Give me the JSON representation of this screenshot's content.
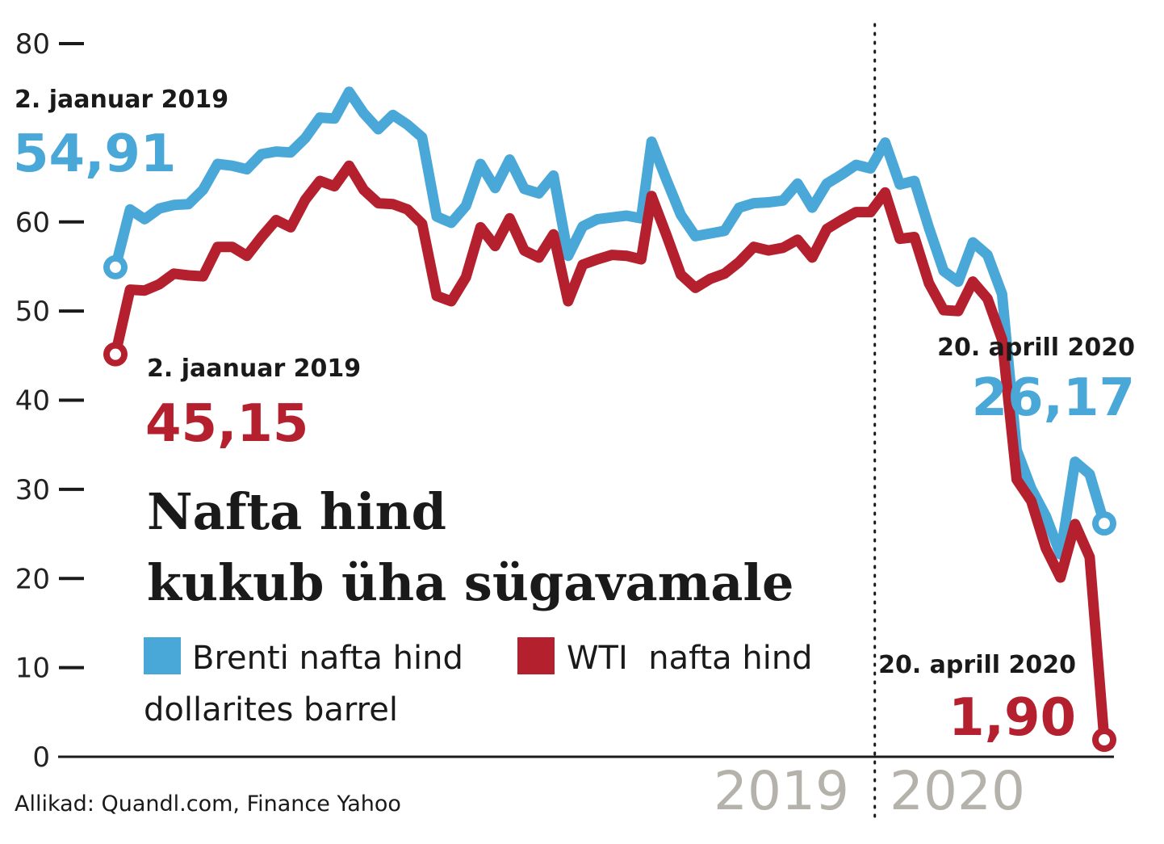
{
  "chart_data": {
    "type": "line",
    "title": [
      "Nafta hind",
      "kukub üha sügavamale"
    ],
    "unit_label": "dollarites barrel",
    "source": "Allikad: Quandl.com, Finance Yahoo",
    "ylim": [
      0,
      80
    ],
    "yticks": [
      "0",
      "10",
      "20",
      "30",
      "40",
      "50",
      "60",
      "80"
    ],
    "ytick_values": [
      0,
      10,
      20,
      30,
      40,
      50,
      60,
      80
    ],
    "x_range": [
      "2019-01-02",
      "2020-04-20"
    ],
    "year_labels": [
      "2019",
      "2020"
    ],
    "year_divider": "2020-01-01",
    "series": [
      {
        "name": "Brenti nafta hind",
        "color": "#4aa8d8",
        "values": [
          [
            "2019-01-02",
            54.91
          ],
          [
            "2019-01-09",
            61.4
          ],
          [
            "2019-01-16",
            60.3
          ],
          [
            "2019-01-23",
            61.5
          ],
          [
            "2019-01-30",
            61.9
          ],
          [
            "2019-02-06",
            62.0
          ],
          [
            "2019-02-13",
            63.6
          ],
          [
            "2019-02-20",
            66.5
          ],
          [
            "2019-02-27",
            66.3
          ],
          [
            "2019-03-06",
            65.9
          ],
          [
            "2019-03-13",
            67.6
          ],
          [
            "2019-03-20",
            67.9
          ],
          [
            "2019-03-27",
            67.8
          ],
          [
            "2019-04-03",
            69.4
          ],
          [
            "2019-04-10",
            71.7
          ],
          [
            "2019-04-17",
            71.6
          ],
          [
            "2019-04-24",
            74.6
          ],
          [
            "2019-05-01",
            72.2
          ],
          [
            "2019-05-08",
            70.4
          ],
          [
            "2019-05-15",
            72.0
          ],
          [
            "2019-05-22",
            70.9
          ],
          [
            "2019-05-29",
            69.5
          ],
          [
            "2019-06-05",
            60.6
          ],
          [
            "2019-06-12",
            59.9
          ],
          [
            "2019-06-19",
            61.8
          ],
          [
            "2019-06-26",
            66.5
          ],
          [
            "2019-07-03",
            63.8
          ],
          [
            "2019-07-10",
            67.0
          ],
          [
            "2019-07-17",
            63.7
          ],
          [
            "2019-07-24",
            63.2
          ],
          [
            "2019-07-31",
            65.2
          ],
          [
            "2019-08-07",
            56.2
          ],
          [
            "2019-08-14",
            59.5
          ],
          [
            "2019-08-21",
            60.3
          ],
          [
            "2019-08-28",
            60.5
          ],
          [
            "2019-09-04",
            60.7
          ],
          [
            "2019-09-11",
            60.4
          ],
          [
            "2019-09-16",
            69.0
          ],
          [
            "2019-09-23",
            64.8
          ],
          [
            "2019-09-30",
            60.8
          ],
          [
            "2019-10-07",
            58.4
          ],
          [
            "2019-10-14",
            58.7
          ],
          [
            "2019-10-21",
            59.0
          ],
          [
            "2019-10-28",
            61.6
          ],
          [
            "2019-11-04",
            62.1
          ],
          [
            "2019-11-11",
            62.2
          ],
          [
            "2019-11-18",
            62.4
          ],
          [
            "2019-11-25",
            64.3
          ],
          [
            "2019-12-02",
            61.6
          ],
          [
            "2019-12-09",
            64.3
          ],
          [
            "2019-12-16",
            65.3
          ],
          [
            "2019-12-23",
            66.4
          ],
          [
            "2019-12-30",
            66.0
          ],
          [
            "2020-01-06",
            68.9
          ],
          [
            "2020-01-13",
            64.2
          ],
          [
            "2020-01-20",
            64.6
          ],
          [
            "2020-01-27",
            59.3
          ],
          [
            "2020-02-03",
            54.5
          ],
          [
            "2020-02-10",
            53.3
          ],
          [
            "2020-02-17",
            57.7
          ],
          [
            "2020-02-24",
            56.3
          ],
          [
            "2020-03-02",
            51.9
          ],
          [
            "2020-03-09",
            34.4
          ],
          [
            "2020-03-16",
            30.1
          ],
          [
            "2020-03-23",
            27.0
          ],
          [
            "2020-03-30",
            22.7
          ],
          [
            "2020-04-06",
            33.1
          ],
          [
            "2020-04-13",
            31.7
          ],
          [
            "2020-04-20",
            26.17
          ]
        ]
      },
      {
        "name": "WTI  nafta hind",
        "color": "#b5202e",
        "values": [
          [
            "2019-01-02",
            45.15
          ],
          [
            "2019-01-09",
            52.4
          ],
          [
            "2019-01-16",
            52.3
          ],
          [
            "2019-01-23",
            53.0
          ],
          [
            "2019-01-30",
            54.2
          ],
          [
            "2019-02-06",
            54.0
          ],
          [
            "2019-02-13",
            53.9
          ],
          [
            "2019-02-20",
            57.2
          ],
          [
            "2019-02-27",
            57.2
          ],
          [
            "2019-03-06",
            56.2
          ],
          [
            "2019-03-13",
            58.3
          ],
          [
            "2019-03-20",
            60.2
          ],
          [
            "2019-03-27",
            59.4
          ],
          [
            "2019-04-03",
            62.5
          ],
          [
            "2019-04-10",
            64.6
          ],
          [
            "2019-04-17",
            64.0
          ],
          [
            "2019-04-24",
            66.3
          ],
          [
            "2019-05-01",
            63.6
          ],
          [
            "2019-05-08",
            62.1
          ],
          [
            "2019-05-15",
            62.0
          ],
          [
            "2019-05-22",
            61.4
          ],
          [
            "2019-05-29",
            59.8
          ],
          [
            "2019-06-05",
            51.7
          ],
          [
            "2019-06-12",
            51.1
          ],
          [
            "2019-06-19",
            53.8
          ],
          [
            "2019-06-26",
            59.4
          ],
          [
            "2019-07-03",
            57.3
          ],
          [
            "2019-07-10",
            60.4
          ],
          [
            "2019-07-17",
            56.8
          ],
          [
            "2019-07-24",
            56.0
          ],
          [
            "2019-07-31",
            58.6
          ],
          [
            "2019-08-07",
            51.1
          ],
          [
            "2019-08-14",
            55.2
          ],
          [
            "2019-08-21",
            55.8
          ],
          [
            "2019-08-28",
            56.3
          ],
          [
            "2019-09-04",
            56.2
          ],
          [
            "2019-09-11",
            55.8
          ],
          [
            "2019-09-16",
            62.9
          ],
          [
            "2019-09-23",
            58.6
          ],
          [
            "2019-09-30",
            54.1
          ],
          [
            "2019-10-07",
            52.6
          ],
          [
            "2019-10-14",
            53.6
          ],
          [
            "2019-10-21",
            54.2
          ],
          [
            "2019-10-28",
            55.5
          ],
          [
            "2019-11-04",
            57.2
          ],
          [
            "2019-11-11",
            56.8
          ],
          [
            "2019-11-18",
            57.1
          ],
          [
            "2019-11-25",
            58.0
          ],
          [
            "2019-12-02",
            56.0
          ],
          [
            "2019-12-09",
            59.2
          ],
          [
            "2019-12-16",
            60.2
          ],
          [
            "2019-12-23",
            61.1
          ],
          [
            "2019-12-30",
            61.1
          ],
          [
            "2020-01-06",
            63.3
          ],
          [
            "2020-01-13",
            58.1
          ],
          [
            "2020-01-20",
            58.3
          ],
          [
            "2020-01-27",
            53.1
          ],
          [
            "2020-02-03",
            50.1
          ],
          [
            "2020-02-10",
            50.0
          ],
          [
            "2020-02-17",
            53.3
          ],
          [
            "2020-02-24",
            51.4
          ],
          [
            "2020-03-02",
            46.8
          ],
          [
            "2020-03-09",
            31.1
          ],
          [
            "2020-03-16",
            28.7
          ],
          [
            "2020-03-23",
            23.4
          ],
          [
            "2020-03-30",
            20.1
          ],
          [
            "2020-04-06",
            26.1
          ],
          [
            "2020-04-13",
            22.4
          ],
          [
            "2020-04-20",
            1.9
          ]
        ]
      }
    ],
    "annotations": [
      {
        "series": "Brenti nafta hind",
        "date_label": "2. jaanuar 2019",
        "value_label": "54,91"
      },
      {
        "series": "WTI  nafta hind",
        "date_label": "2. jaanuar 2019",
        "value_label": "45,15"
      },
      {
        "series": "Brenti nafta hind",
        "date_label": "20. aprill 2020",
        "value_label": "26,17"
      },
      {
        "series": "WTI  nafta hind",
        "date_label": "20. aprill 2020",
        "value_label": "1,90"
      }
    ]
  }
}
